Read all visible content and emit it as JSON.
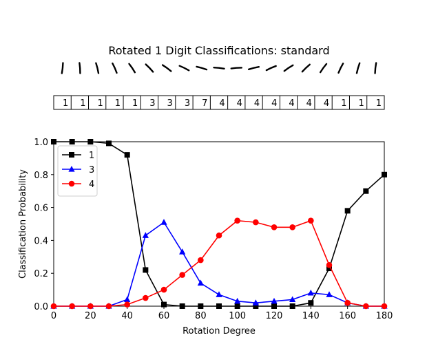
{
  "figure_title": "Rotated 1 Digit Classifications: standard",
  "predictions": [
    "1",
    "1",
    "1",
    "1",
    "1",
    "3",
    "3",
    "3",
    "7",
    "4",
    "4",
    "4",
    "4",
    "4",
    "4",
    "4",
    "1",
    "1",
    "1"
  ],
  "chart_data": {
    "type": "line",
    "xlabel": "Rotation Degree",
    "ylabel": "Classification Probability",
    "xlim": [
      0,
      180
    ],
    "ylim": [
      0,
      1.0
    ],
    "x": [
      0,
      10,
      20,
      30,
      40,
      50,
      60,
      70,
      80,
      90,
      100,
      110,
      120,
      130,
      140,
      150,
      160,
      170,
      180
    ],
    "x_ticks": [
      "0",
      "20",
      "40",
      "60",
      "80",
      "100",
      "120",
      "140",
      "160",
      "180"
    ],
    "y_ticks": [
      "0.0",
      "0.2",
      "0.4",
      "0.6",
      "0.8",
      "1.0"
    ],
    "grid": false,
    "legend_position": "top-left",
    "series": [
      {
        "name": "1",
        "color": "#000000",
        "marker": "square",
        "values": [
          1.0,
          1.0,
          1.0,
          0.99,
          0.92,
          0.22,
          0.01,
          0.0,
          0.0,
          0.0,
          0.0,
          0.0,
          0.0,
          0.0,
          0.02,
          0.23,
          0.58,
          0.7,
          0.8
        ]
      },
      {
        "name": "3",
        "color": "#0000ff",
        "marker": "triangle",
        "values": [
          0.0,
          0.0,
          0.0,
          0.0,
          0.04,
          0.43,
          0.51,
          0.33,
          0.14,
          0.07,
          0.03,
          0.02,
          0.03,
          0.04,
          0.08,
          0.07,
          0.02,
          0.0,
          0.0
        ]
      },
      {
        "name": "4",
        "color": "#ff0000",
        "marker": "circle",
        "values": [
          0.0,
          0.0,
          0.0,
          0.0,
          0.01,
          0.05,
          0.1,
          0.19,
          0.28,
          0.43,
          0.52,
          0.51,
          0.48,
          0.48,
          0.52,
          0.25,
          0.02,
          0.0,
          0.0
        ]
      }
    ]
  }
}
